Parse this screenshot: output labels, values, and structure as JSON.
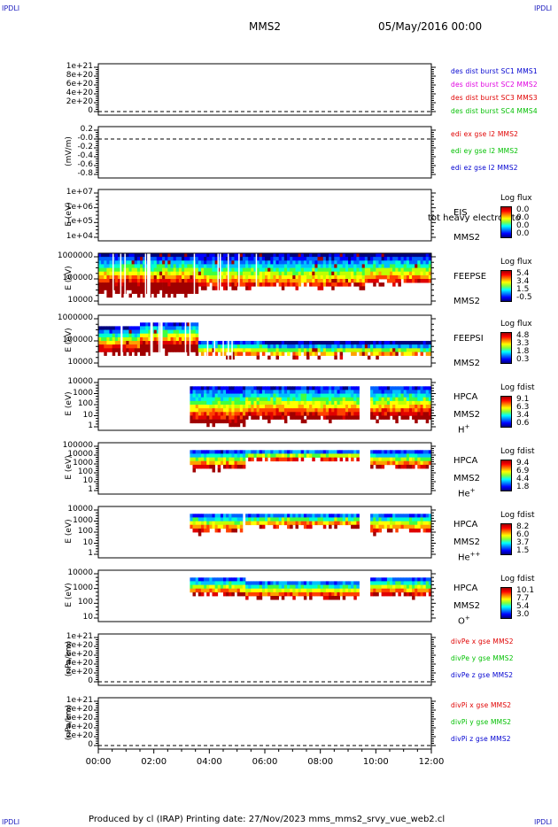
{
  "header": {
    "corner_tl": "IPDLI",
    "corner_tr": "IPDLI",
    "corner_bl": "IPDLI",
    "corner_br": "IPDLI",
    "title": "MMS2",
    "date": "05/May/2016 00:00"
  },
  "footer": {
    "text": "Produced by cl (IRAP)   Printing date: 27/Nov/2023   mms_mms2_srvy_vue_web2.cl"
  },
  "colors": {
    "blue": "#0000d0",
    "magenta": "#e000e0",
    "red": "#e00000",
    "green": "#00c000"
  },
  "chart_data": [
    {
      "type": "line",
      "panel": 1,
      "ylabel": "",
      "ticks": [
        "1e+21",
        "8e+20",
        "6e+20",
        "4e+20",
        "2e+20",
        "0"
      ],
      "legend": [
        {
          "name": "des dist burst SC1 MMS1",
          "color": "blue"
        },
        {
          "name": "des dist burst SC2 MMS2",
          "color": "magenta"
        },
        {
          "name": "des dist burst SC3 MMS3",
          "color": "red"
        },
        {
          "name": "des dist burst SC4 MMS4",
          "color": "green"
        }
      ]
    },
    {
      "type": "line",
      "panel": 2,
      "ylabel": "(mV/m)",
      "ticks": [
        "0.2",
        "-0.0",
        "-0.2",
        "-0.4",
        "-0.6",
        "-0.8"
      ],
      "legend": [
        {
          "name": "edi ex gse l2 MMS2",
          "color": "red"
        },
        {
          "name": "edi ey gse l2 MMS2",
          "color": "green"
        },
        {
          "name": "edi ez gse l2 MMS2",
          "color": "blue"
        }
      ]
    },
    {
      "type": "heatmap",
      "panel": 3,
      "ylabel": "E (eV)",
      "ticks": [
        "1e+07",
        "1e+06",
        "1e+05",
        "1e+04"
      ],
      "instrument": "EIS",
      "extra": "tot heavy electron to",
      "sc": "MMS2",
      "cb_title": "Log flux",
      "cb_values": [
        "0.0",
        "0.0",
        "0.0",
        "0.0"
      ]
    },
    {
      "type": "heatmap",
      "panel": 4,
      "ylabel": "E (eV)",
      "ticks": [
        "1000000",
        "100000",
        "10000"
      ],
      "instrument": "FEEPSE",
      "sc": "MMS2",
      "cb_title": "Log flux",
      "cb_values": [
        "5.4",
        "3.4",
        "1.5",
        "-0.5"
      ]
    },
    {
      "type": "heatmap",
      "panel": 5,
      "ylabel": "E (eV)",
      "ticks": [
        "1000000",
        "100000",
        "10000"
      ],
      "instrument": "FEEPSI",
      "sc": "MMS2",
      "cb_title": "Log flux",
      "cb_values": [
        "4.8",
        "3.3",
        "1.8",
        "0.3"
      ]
    },
    {
      "type": "heatmap",
      "panel": 6,
      "ylabel": "E (eV)",
      "ticks": [
        "10000",
        "1000",
        "100",
        "10",
        "1"
      ],
      "instrument": "HPCA",
      "sc": "MMS2",
      "species": "H",
      "charge": "+",
      "cb_title": "Log fdist",
      "cb_values": [
        "9.1",
        "6.3",
        "3.4",
        "0.6"
      ]
    },
    {
      "type": "heatmap",
      "panel": 7,
      "ylabel": "E (eV)",
      "ticks": [
        "100000",
        "10000",
        "1000",
        "100",
        "10",
        "1"
      ],
      "instrument": "HPCA",
      "sc": "MMS2",
      "species": "He",
      "charge": "+",
      "cb_title": "Log fdist",
      "cb_values": [
        "9.4",
        "6.9",
        "4.4",
        "1.8"
      ]
    },
    {
      "type": "heatmap",
      "panel": 8,
      "ylabel": "E (eV)",
      "ticks": [
        "10000",
        "1000",
        "100",
        "10",
        "1"
      ],
      "instrument": "HPCA",
      "sc": "MMS2",
      "species": "He",
      "charge": "++",
      "cb_title": "Log fdist",
      "cb_values": [
        "8.2",
        "6.0",
        "3.7",
        "1.5"
      ]
    },
    {
      "type": "heatmap",
      "panel": 9,
      "ylabel": "E (eV)",
      "ticks": [
        "10000",
        "1000",
        "100",
        "10"
      ],
      "instrument": "HPCA",
      "sc": "MMS2",
      "species": "O",
      "charge": "+",
      "cb_title": "Log fdist",
      "cb_values": [
        "10.1",
        "7.7",
        "5.4",
        "3.0"
      ]
    },
    {
      "type": "line",
      "panel": 10,
      "ylabel": "(nPa/km)",
      "ticks": [
        "1e+21",
        "8e+20",
        "6e+20",
        "4e+20",
        "2e+20",
        "0"
      ],
      "legend": [
        {
          "name": "divPe x gse MMS2",
          "color": "red"
        },
        {
          "name": "divPe y gse MMS2",
          "color": "green"
        },
        {
          "name": "divPe z gse MMS2",
          "color": "blue"
        }
      ]
    },
    {
      "type": "line",
      "panel": 11,
      "ylabel": "(nPa/km)",
      "ticks": [
        "1e+21",
        "8e+20",
        "6e+20",
        "4e+20",
        "2e+20",
        "0"
      ],
      "legend": [
        {
          "name": "divPi x gse MMS2",
          "color": "red"
        },
        {
          "name": "divPi y gse MMS2",
          "color": "green"
        },
        {
          "name": "divPi z gse MMS2",
          "color": "blue"
        }
      ]
    }
  ],
  "xaxis": {
    "ticks": [
      "00:00",
      "02:00",
      "04:00",
      "06:00",
      "08:00",
      "10:00",
      "12:00"
    ]
  }
}
